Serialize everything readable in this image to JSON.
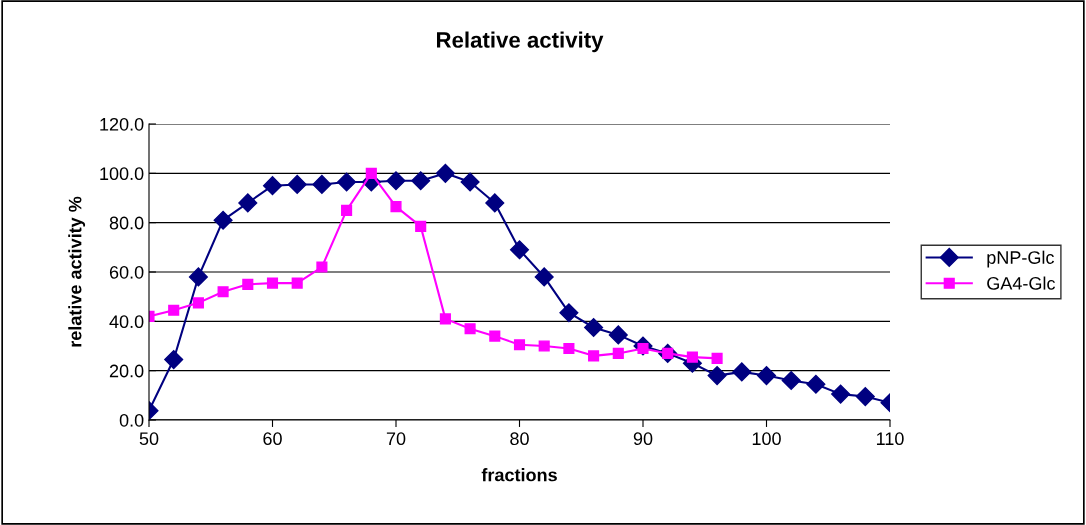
{
  "chart_data": {
    "type": "line",
    "title": "Relative activity",
    "xlabel": "fractions",
    "ylabel": "relative activity %",
    "series": [
      {
        "name": "pNP-Glc",
        "color": "#000080",
        "marker": "diamond",
        "x": [
          50,
          52,
          54,
          56,
          58,
          60,
          62,
          64,
          66,
          68,
          70,
          72,
          74,
          76,
          78,
          80,
          82,
          84,
          86,
          88,
          90,
          92,
          94,
          96,
          98,
          100,
          102,
          104,
          106,
          108,
          110
        ],
        "values": [
          3.8,
          24.5,
          58,
          81,
          88,
          95,
          95.5,
          95.5,
          96.5,
          96.5,
          97,
          97,
          100,
          96.5,
          88,
          69,
          58,
          43.5,
          37.5,
          34.5,
          30,
          27,
          23,
          18,
          19.5,
          18,
          16,
          14.5,
          10.5,
          9.5,
          7
        ]
      },
      {
        "name": "GA4-Glc",
        "color": "#ff00ff",
        "marker": "square",
        "x": [
          50,
          52,
          54,
          56,
          58,
          60,
          62,
          64,
          66,
          68,
          70,
          72,
          74,
          76,
          78,
          80,
          82,
          84,
          86,
          88,
          90,
          92,
          94,
          96
        ],
        "values": [
          42,
          44.5,
          47.5,
          52,
          55,
          55.5,
          55.5,
          62,
          85,
          100,
          86.5,
          78.5,
          41,
          37,
          34,
          30.5,
          30,
          29,
          26,
          27,
          29,
          27,
          25.5,
          25
        ]
      }
    ],
    "xlim": [
      50,
      110
    ],
    "xticks": [
      50,
      60,
      70,
      80,
      90,
      100,
      110
    ],
    "ylim": [
      0,
      120
    ],
    "yticks": [
      {
        "value": 0,
        "label": "0.0"
      },
      {
        "value": 20,
        "label": "20.0"
      },
      {
        "value": 40,
        "label": "40.0"
      },
      {
        "value": 60,
        "label": "60.0"
      },
      {
        "value": 80,
        "label": "80.0"
      },
      {
        "value": 100,
        "label": "100.0"
      },
      {
        "value": 120,
        "label": "120.0"
      }
    ],
    "grid": "y",
    "legend": "right"
  }
}
